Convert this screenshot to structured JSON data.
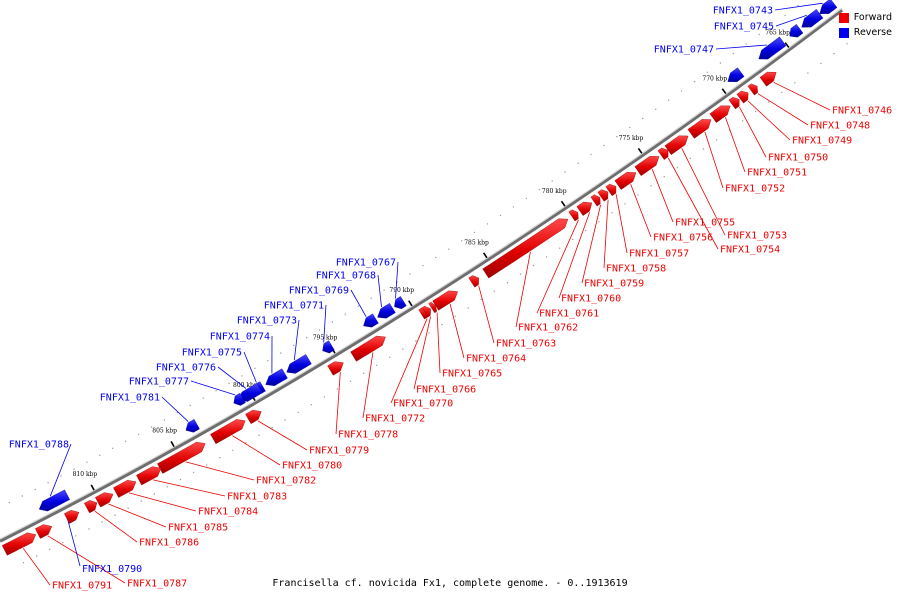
{
  "caption": "Francisella cf. novicida Fx1, complete genome. - 0..1913619",
  "legend": {
    "forward_label": "Forward",
    "reverse_label": "Reverse",
    "forward_color": "#ee0000",
    "reverse_color": "#0000ee"
  },
  "ticks": [
    "765 kbp",
    "770 kbp",
    "775 kbp",
    "780 kbp",
    "785 kbp",
    "790 kbp",
    "795 kbp",
    "800 kbp",
    "805 kbp",
    "810 kbp"
  ],
  "reverse_genes": [
    "FNFX1_0743",
    "FNFX1_0745",
    "FNFX1_0747",
    "FNFX1_0767",
    "FNFX1_0768",
    "FNFX1_0769",
    "FNFX1_0771",
    "FNFX1_0773",
    "FNFX1_0774",
    "FNFX1_0775",
    "FNFX1_0776",
    "FNFX1_0777",
    "FNFX1_0781",
    "FNFX1_0788",
    "FNFX1_0790"
  ],
  "forward_genes": [
    "FNFX1_0746",
    "FNFX1_0748",
    "FNFX1_0749",
    "FNFX1_0750",
    "FNFX1_0751",
    "FNFX1_0752",
    "FNFX1_0753",
    "FNFX1_0754",
    "FNFX1_0755",
    "FNFX1_0756",
    "FNFX1_0757",
    "FNFX1_0758",
    "FNFX1_0759",
    "FNFX1_0760",
    "FNFX1_0761",
    "FNFX1_0762",
    "FNFX1_0763",
    "FNFX1_0764",
    "FNFX1_0765",
    "FNFX1_0766",
    "FNFX1_0770",
    "FNFX1_0772",
    "FNFX1_0778",
    "FNFX1_0779",
    "FNFX1_0780",
    "FNFX1_0782",
    "FNFX1_0783",
    "FNFX1_0784",
    "FNFX1_0785",
    "FNFX1_0786",
    "FNFX1_0787",
    "FNFX1_0791"
  ]
}
